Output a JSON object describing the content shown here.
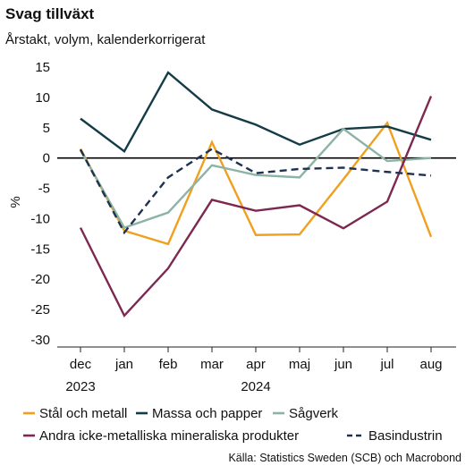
{
  "title": "Svag tillväxt",
  "subtitle": "Årstakt, volym, kalenderkorrigerat",
  "source": "Källa: Statistics Sweden (SCB) och Macrobond",
  "chart_data": {
    "type": "line",
    "ylabel": "%",
    "ylim": [
      -30,
      15
    ],
    "yticks": [
      15,
      10,
      5,
      0,
      -5,
      -10,
      -15,
      -20,
      -25,
      -30
    ],
    "categories": [
      "dec",
      "jan",
      "feb",
      "mar",
      "apr",
      "maj",
      "jun",
      "jul",
      "aug"
    ],
    "year_labels": [
      {
        "index": 0,
        "label": "2023"
      },
      {
        "index": 4,
        "label": "2024"
      }
    ],
    "zero_line": true,
    "grid": false,
    "legend_position": "bottom",
    "series": [
      {
        "name": "Stål och metall",
        "color": "#f0a01e",
        "dash": false,
        "values": [
          1.5,
          -12,
          -14.2,
          2.6,
          -12.7,
          -12.6,
          -3.5,
          5.8,
          -13
        ]
      },
      {
        "name": "Massa och papper",
        "color": "#143c46",
        "dash": false,
        "values": [
          6.5,
          1.1,
          14.1,
          8.0,
          5.5,
          2.2,
          4.8,
          5.2,
          3.0
        ]
      },
      {
        "name": "Sågverk",
        "color": "#8cb4a5",
        "dash": false,
        "values": [
          1.3,
          -11.5,
          -9.0,
          -1.2,
          -2.8,
          -3.2,
          4.8,
          -0.5,
          0.0
        ]
      },
      {
        "name": "Andra icke-metalliska mineraliska produkter",
        "color": "#7d2850",
        "dash": false,
        "values": [
          -11.5,
          -26.0,
          -18.2,
          -6.9,
          -8.7,
          -7.8,
          -11.6,
          -7.2,
          10.2
        ]
      },
      {
        "name": "Basindustrin",
        "color": "#1e3250",
        "dash": true,
        "values": [
          1.4,
          -12.3,
          -3.2,
          1.5,
          -2.5,
          -1.8,
          -1.6,
          -2.3,
          -2.9
        ]
      }
    ]
  }
}
